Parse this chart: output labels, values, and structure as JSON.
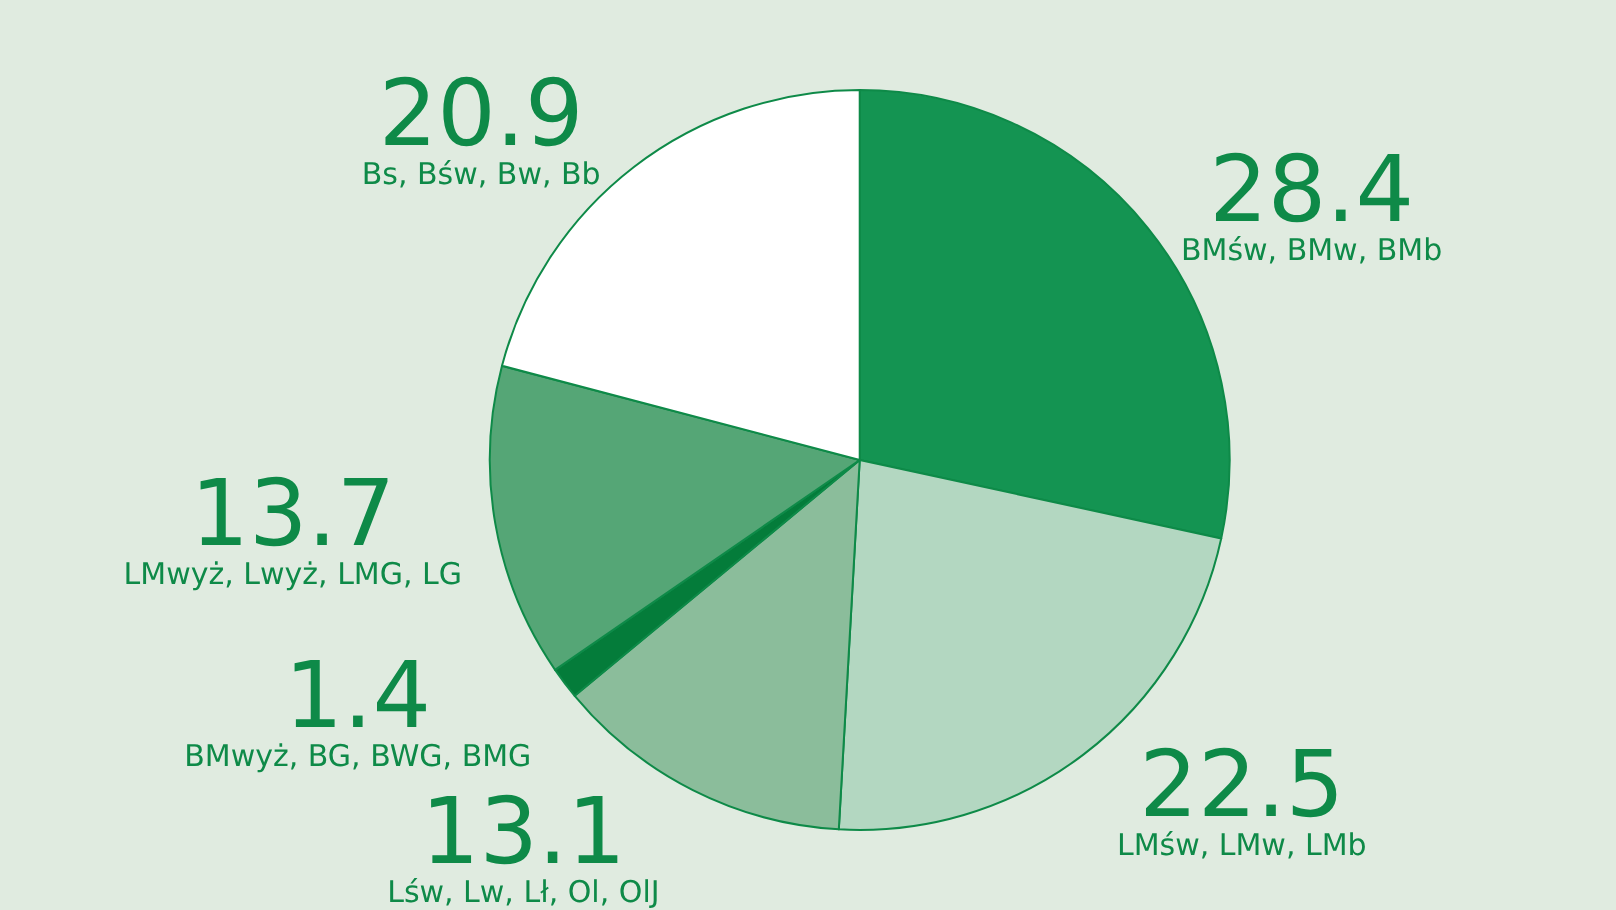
{
  "chart_data": {
    "type": "pie",
    "categories": [
      "BMśw, BMw, BMb",
      "LMśw, LMw, LMb",
      "Lśw, Lw, Lł, Ol, OlJ",
      "BMwyż, BG, BWG, BMG",
      "LMwyż, Lwyż, LMG, LG",
      "Bs, Bśw, Bw, Bb"
    ],
    "values": [
      28.4,
      22.5,
      13.1,
      1.4,
      13.7,
      20.9
    ],
    "colors": [
      "#149452",
      "#b3d7c1",
      "#8bbd9b",
      "#047c3a",
      "#55a676",
      "#ffffff"
    ],
    "data_labels": true,
    "legend": false
  }
}
